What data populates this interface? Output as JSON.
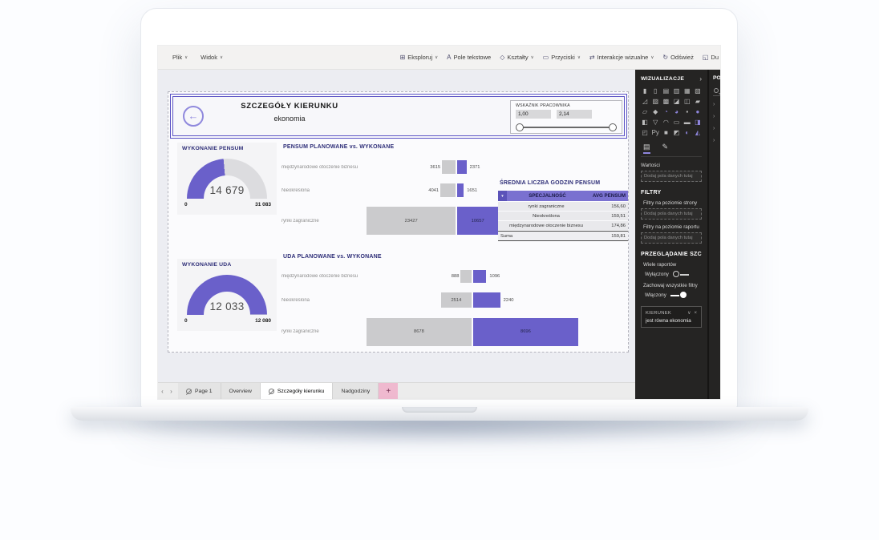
{
  "icons": {
    "chevron_down": "∨",
    "collapse_right": "›",
    "dropdown": "▼",
    "back_arrow": "←",
    "close": "×",
    "nav_prev": "‹",
    "nav_next": "›"
  },
  "colors": {
    "accent": "#6A60CA",
    "planned_gray": "#CBCBCD",
    "title_indigo": "#2E2E78",
    "sidebar_bg": "#252423",
    "table_header_bg": "#7A71D0",
    "add_tab_pink": "#EFB9CF"
  },
  "menubar": {
    "left": [
      {
        "label": "Plik",
        "chevron": true
      },
      {
        "label": "Widok",
        "chevron": true
      }
    ],
    "right": [
      {
        "label": "Eksploruj",
        "icon_name": "explore-icon",
        "glyph": "⊞",
        "chevron": true
      },
      {
        "label": "Pole tekstowe",
        "icon_name": "textbox-icon",
        "glyph": "A",
        "chevron": false
      },
      {
        "label": "Kształty",
        "icon_name": "shapes-icon",
        "glyph": "◇",
        "chevron": true
      },
      {
        "label": "Przyciski",
        "icon_name": "buttons-icon",
        "glyph": "▭",
        "chevron": true
      },
      {
        "label": "Interakcje wizualne",
        "icon_name": "interactions-icon",
        "glyph": "⇄",
        "chevron": true
      },
      {
        "label": "Odśwież",
        "icon_name": "refresh-icon",
        "glyph": "↻",
        "chevron": false
      },
      {
        "label": "Du",
        "icon_name": "duplicate-icon",
        "glyph": "◱",
        "chevron": false
      }
    ]
  },
  "report": {
    "header": {
      "title": "SZCZEGÓŁY KIERUNKU",
      "subtitle": "ekonomia"
    },
    "slider": {
      "label": "WSKAŹNIK PRACOWNIKA",
      "from_value": "1,00",
      "to_value": "2,14"
    }
  },
  "chart_data": [
    {
      "type": "gauge",
      "title": "WYKONANIE PENSUM",
      "value": 14679,
      "value_label": "14 679",
      "min": 0,
      "max": 31083,
      "min_label": "0",
      "max_label": "31 083"
    },
    {
      "type": "bar",
      "subtype": "tornado",
      "title": "PENSUM PLANOWANE vs. WYKONANE",
      "categories": [
        "międzynarodowe otoczenie biznesu",
        "Nieokreślona",
        "rynki zagraniczne"
      ],
      "series": [
        {
          "name": "PLANOWANE",
          "color": "#CBCBCD",
          "values": [
            3615,
            4041,
            23427
          ]
        },
        {
          "name": "WYKONANE",
          "color": "#6A60CA",
          "values": [
            2371,
            1651,
            10657
          ]
        }
      ]
    },
    {
      "type": "table",
      "title": "ŚREDNIA LICZBA GODZIN PENSUM",
      "columns": [
        "SPECJALNOŚĆ",
        "AVG PENSUM"
      ],
      "rows": [
        [
          "rynki zagraniczne",
          "156,60"
        ],
        [
          "Nieokreślona",
          "159,51"
        ],
        [
          "międzynarodowe otoczenie biznesu",
          "174,86"
        ]
      ],
      "total_row": [
        "Suma",
        "159,81"
      ]
    },
    {
      "type": "gauge",
      "title": "WYKONANIE UDA",
      "value": 12033,
      "value_label": "12 033",
      "min": 0,
      "max": 12080,
      "min_label": "0",
      "max_label": "12 080"
    },
    {
      "type": "bar",
      "subtype": "tornado",
      "title": "UDA PLANOWANE vs. WYKONANE",
      "categories": [
        "międzynarodowe otoczenie biznesu",
        "Nieokreślona",
        "rynki zagraniczne"
      ],
      "series": [
        {
          "name": "PLANOWANE",
          "color": "#CBCBCD",
          "values": [
            888,
            2514,
            8678
          ]
        },
        {
          "name": "WYKONANE",
          "color": "#6A60CA",
          "values": [
            1096,
            2240,
            8696
          ]
        }
      ]
    }
  ],
  "sidebar": {
    "title": "WIZUALIZACJE",
    "viz_icons": [
      {
        "g": "▮",
        "a": false
      },
      {
        "g": "▯",
        "a": false
      },
      {
        "g": "▤",
        "a": false
      },
      {
        "g": "▥",
        "a": false
      },
      {
        "g": "▦",
        "a": false
      },
      {
        "g": "▧",
        "a": false
      },
      {
        "g": "◿",
        "a": false
      },
      {
        "g": "▨",
        "a": false
      },
      {
        "g": "▩",
        "a": false
      },
      {
        "g": "◪",
        "a": false
      },
      {
        "g": "◫",
        "a": false
      },
      {
        "g": "▰",
        "a": false
      },
      {
        "g": "▱",
        "a": false
      },
      {
        "g": "◆",
        "a": false
      },
      {
        "g": "◔",
        "a": true
      },
      {
        "g": "◕",
        "a": true
      },
      {
        "g": "▪",
        "a": false
      },
      {
        "g": "●",
        "a": true
      },
      {
        "g": "◧",
        "a": false
      },
      {
        "g": "▽",
        "a": false
      },
      {
        "g": "◠",
        "a": false
      },
      {
        "g": "▭",
        "a": false
      },
      {
        "g": "▬",
        "a": false
      },
      {
        "g": "◨",
        "a": true
      },
      {
        "g": "◰",
        "a": false
      },
      {
        "g": "Py",
        "a": false
      },
      {
        "g": "■",
        "a": false
      },
      {
        "g": "◩",
        "a": false
      },
      {
        "g": "◐",
        "a": true
      },
      {
        "g": "◭",
        "a": true
      }
    ],
    "pane_tabs": [
      {
        "name": "fields-pane-tab",
        "glyph": "▤",
        "active": true
      },
      {
        "name": "format-pane-tab",
        "glyph": "✎",
        "active": false
      }
    ],
    "values_label": "Wartości",
    "field_placeholder": "Dodaj pola danych tutaj",
    "filters": {
      "title": "FILTRY",
      "page_label": "Filtry na poziomie strony",
      "report_label": "Filtry na poziomie raportu"
    },
    "drillthrough": {
      "title": "PRZEGLĄDANIE SZCZEGÓ",
      "multi_reports_label": "Wiele raportów",
      "multi_reports_state": "Wyłączony",
      "keep_filters_label": "Zachowaj wszystkie filtry",
      "keep_filters_state": "Włączony",
      "filter_chip": {
        "field": "KIERUNEK",
        "condition": "jest równa ekonomia"
      }
    }
  },
  "fields_panel": {
    "title": "PO"
  },
  "tabbar": {
    "tabs": [
      {
        "label": "Page 1",
        "hidden": true,
        "active": false
      },
      {
        "label": "Overview",
        "hidden": false,
        "active": false
      },
      {
        "label": "Szczegóły kierunku",
        "hidden": true,
        "active": true
      },
      {
        "label": "Nadgodziny",
        "hidden": false,
        "active": false
      }
    ],
    "add_label": "+"
  }
}
